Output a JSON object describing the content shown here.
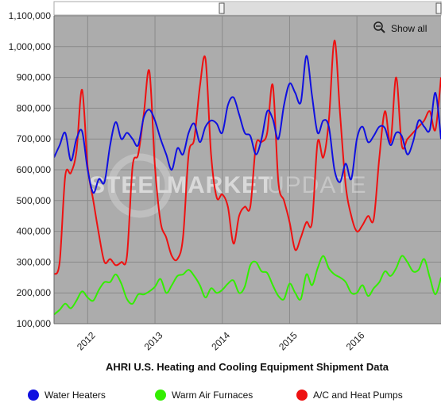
{
  "chart_data": {
    "type": "line",
    "title": "AHRI U.S. Heating and Cooling Equipment Shipment Data",
    "xlabel": "",
    "ylabel": "",
    "ylim": [
      100000,
      1100000
    ],
    "yticks": [
      100000,
      200000,
      300000,
      400000,
      500000,
      600000,
      700000,
      800000,
      900000,
      1000000,
      1100000
    ],
    "ytick_labels": [
      "100,000",
      "200,000",
      "300,000",
      "400,000",
      "500,000",
      "600,000",
      "700,000",
      "800,000",
      "900,000",
      "1,000,000",
      "1,100,000"
    ],
    "xlim": [
      "2011-07",
      "2017-04"
    ],
    "xticks": [
      "2012-01",
      "2013-01",
      "2014-01",
      "2015-01",
      "2016-01"
    ],
    "xtick_labels": [
      "2012",
      "2013",
      "2014",
      "2015",
      "2016"
    ],
    "grid": true,
    "legend_position": "bottom",
    "zoom_label": "Show all",
    "watermark": {
      "left": "STEEL",
      "middle": "MARKET",
      "right": "UPDATE"
    },
    "series": [
      {
        "name": "Water Heaters",
        "color": "#1010e0",
        "x": [
          "2011-07",
          "2011-08",
          "2011-09",
          "2011-10",
          "2011-11",
          "2011-12",
          "2012-01",
          "2012-02",
          "2012-03",
          "2012-04",
          "2012-05",
          "2012-06",
          "2012-07",
          "2012-08",
          "2012-09",
          "2012-10",
          "2012-11",
          "2012-12",
          "2013-01",
          "2013-02",
          "2013-03",
          "2013-04",
          "2013-05",
          "2013-06",
          "2013-07",
          "2013-08",
          "2013-09",
          "2013-10",
          "2013-11",
          "2013-12",
          "2014-01",
          "2014-02",
          "2014-03",
          "2014-04",
          "2014-05",
          "2014-06",
          "2014-07",
          "2014-08",
          "2014-09",
          "2014-10",
          "2014-11",
          "2014-12",
          "2015-01",
          "2015-02",
          "2015-03",
          "2015-04",
          "2015-05",
          "2015-06",
          "2015-07",
          "2015-08",
          "2015-09",
          "2015-10",
          "2015-11",
          "2015-12",
          "2016-01",
          "2016-02",
          "2016-03",
          "2016-04",
          "2016-05",
          "2016-06",
          "2016-07",
          "2016-08",
          "2016-09",
          "2016-10",
          "2016-11",
          "2016-12",
          "2017-01",
          "2017-02",
          "2017-03",
          "2017-04"
        ],
        "values": [
          640000,
          680000,
          720000,
          630000,
          700000,
          725000,
          600000,
          525000,
          570000,
          560000,
          680000,
          755000,
          700000,
          720000,
          700000,
          680000,
          770000,
          795000,
          760000,
          700000,
          650000,
          600000,
          670000,
          650000,
          720000,
          750000,
          690000,
          740000,
          760000,
          750000,
          720000,
          810000,
          835000,
          780000,
          720000,
          710000,
          650000,
          700000,
          790000,
          765000,
          700000,
          810000,
          880000,
          850000,
          820000,
          970000,
          840000,
          720000,
          760000,
          740000,
          600000,
          560000,
          620000,
          570000,
          700000,
          740000,
          690000,
          710000,
          740000,
          735000,
          680000,
          720000,
          710000,
          650000,
          690000,
          760000,
          740000,
          730000,
          850000,
          700000
        ]
      },
      {
        "name": "Warm Air Furnaces",
        "color": "#33ee00",
        "x": [
          "2011-07",
          "2011-08",
          "2011-09",
          "2011-10",
          "2011-11",
          "2011-12",
          "2012-01",
          "2012-02",
          "2012-03",
          "2012-04",
          "2012-05",
          "2012-06",
          "2012-07",
          "2012-08",
          "2012-09",
          "2012-10",
          "2012-11",
          "2012-12",
          "2013-01",
          "2013-02",
          "2013-03",
          "2013-04",
          "2013-05",
          "2013-06",
          "2013-07",
          "2013-08",
          "2013-09",
          "2013-10",
          "2013-11",
          "2013-12",
          "2014-01",
          "2014-02",
          "2014-03",
          "2014-04",
          "2014-05",
          "2014-06",
          "2014-07",
          "2014-08",
          "2014-09",
          "2014-10",
          "2014-11",
          "2014-12",
          "2015-01",
          "2015-02",
          "2015-03",
          "2015-04",
          "2015-05",
          "2015-06",
          "2015-07",
          "2015-08",
          "2015-09",
          "2015-10",
          "2015-11",
          "2015-12",
          "2016-01",
          "2016-02",
          "2016-03",
          "2016-04",
          "2016-05",
          "2016-06",
          "2016-07",
          "2016-08",
          "2016-09",
          "2016-10",
          "2016-11",
          "2016-12",
          "2017-01",
          "2017-02",
          "2017-03",
          "2017-04"
        ],
        "values": [
          130000,
          145000,
          165000,
          150000,
          175000,
          205000,
          185000,
          175000,
          210000,
          235000,
          235000,
          260000,
          230000,
          180000,
          165000,
          195000,
          195000,
          205000,
          220000,
          245000,
          200000,
          225000,
          255000,
          260000,
          275000,
          255000,
          225000,
          185000,
          215000,
          200000,
          210000,
          230000,
          240000,
          200000,
          220000,
          290000,
          300000,
          270000,
          265000,
          225000,
          190000,
          180000,
          230000,
          200000,
          180000,
          260000,
          225000,
          280000,
          320000,
          280000,
          260000,
          250000,
          235000,
          200000,
          200000,
          225000,
          190000,
          215000,
          235000,
          270000,
          255000,
          280000,
          320000,
          300000,
          270000,
          275000,
          310000,
          250000,
          195000,
          250000
        ]
      },
      {
        "name": "A/C and Heat Pumps",
        "color": "#ee1111",
        "x": [
          "2011-07",
          "2011-08",
          "2011-09",
          "2011-10",
          "2011-11",
          "2011-12",
          "2012-01",
          "2012-02",
          "2012-03",
          "2012-04",
          "2012-05",
          "2012-06",
          "2012-07",
          "2012-08",
          "2012-09",
          "2012-10",
          "2012-11",
          "2012-12",
          "2013-01",
          "2013-02",
          "2013-03",
          "2013-04",
          "2013-05",
          "2013-06",
          "2013-07",
          "2013-08",
          "2013-09",
          "2013-10",
          "2013-11",
          "2013-12",
          "2014-01",
          "2014-02",
          "2014-03",
          "2014-04",
          "2014-05",
          "2014-06",
          "2014-07",
          "2014-08",
          "2014-09",
          "2014-10",
          "2014-11",
          "2014-12",
          "2015-01",
          "2015-02",
          "2015-03",
          "2015-04",
          "2015-05",
          "2015-06",
          "2015-07",
          "2015-08",
          "2015-09",
          "2015-10",
          "2015-11",
          "2015-12",
          "2016-01",
          "2016-02",
          "2016-03",
          "2016-04",
          "2016-05",
          "2016-06",
          "2016-07",
          "2016-08",
          "2016-09",
          "2016-10",
          "2016-11",
          "2016-12",
          "2017-01",
          "2017-02",
          "2017-03",
          "2017-04"
        ],
        "values": [
          260000,
          300000,
          580000,
          590000,
          660000,
          860000,
          610000,
          500000,
          390000,
          300000,
          310000,
          290000,
          300000,
          320000,
          610000,
          650000,
          780000,
          920000,
          610000,
          430000,
          380000,
          320000,
          310000,
          380000,
          650000,
          700000,
          870000,
          960000,
          650000,
          510000,
          520000,
          480000,
          360000,
          450000,
          480000,
          480000,
          680000,
          690000,
          720000,
          875000,
          560000,
          500000,
          430000,
          340000,
          380000,
          430000,
          430000,
          690000,
          640000,
          760000,
          1020000,
          780000,
          550000,
          450000,
          400000,
          420000,
          450000,
          440000,
          640000,
          790000,
          690000,
          900000,
          680000,
          700000,
          720000,
          740000,
          760000,
          790000,
          730000,
          900000
        ]
      }
    ]
  }
}
